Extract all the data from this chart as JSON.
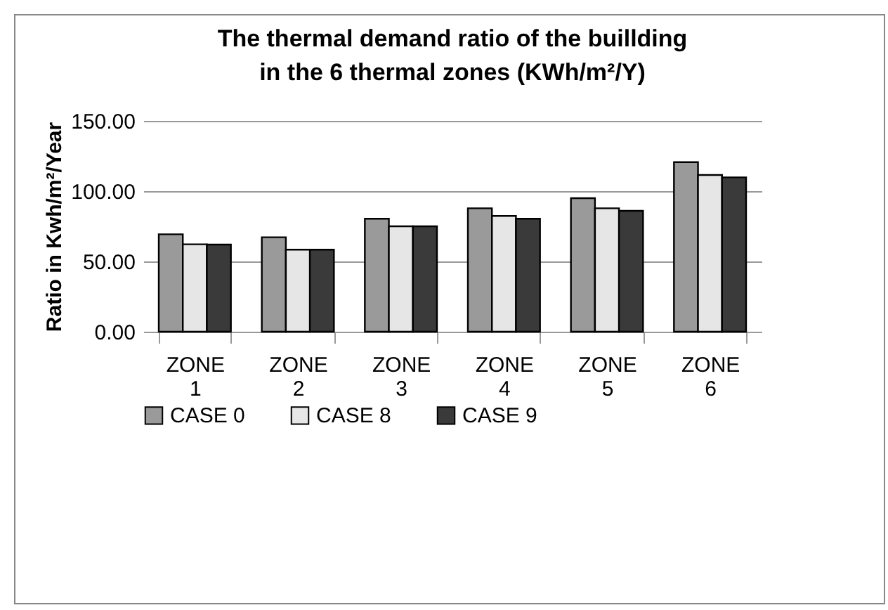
{
  "chart_data": {
    "type": "bar",
    "title": "The thermal demand ratio of the buillding\nin the 6 thermal zones   (KWh/m²/Y)",
    "ylabel": "Ratio in Kwh/m²/Year",
    "categories": [
      "ZONE 1",
      "ZONE 2",
      "ZONE 3",
      "ZONE 4",
      "ZONE 5",
      "ZONE 6"
    ],
    "series": [
      {
        "name": "CASE 0",
        "color": "#9a9a9a",
        "values": [
          69.3,
          67.2,
          80.4,
          87.8,
          95,
          120.6
        ]
      },
      {
        "name": "CASE 8",
        "color": "#e6e6e6",
        "values": [
          62.2,
          58.4,
          75,
          82.4,
          87.8,
          111.5
        ]
      },
      {
        "name": "CASE 9",
        "color": "#3a3a3a",
        "values": [
          62,
          58.4,
          75,
          80.4,
          86,
          109.8
        ]
      }
    ],
    "ylim": [
      0,
      150
    ],
    "yticks": [
      {
        "value": 0,
        "label": "0.00"
      },
      {
        "value": 50,
        "label": "50.00"
      },
      {
        "value": 100,
        "label": "100.00"
      },
      {
        "value": 150,
        "label": "150.00"
      }
    ],
    "grid": "y",
    "legend": "bottom"
  }
}
